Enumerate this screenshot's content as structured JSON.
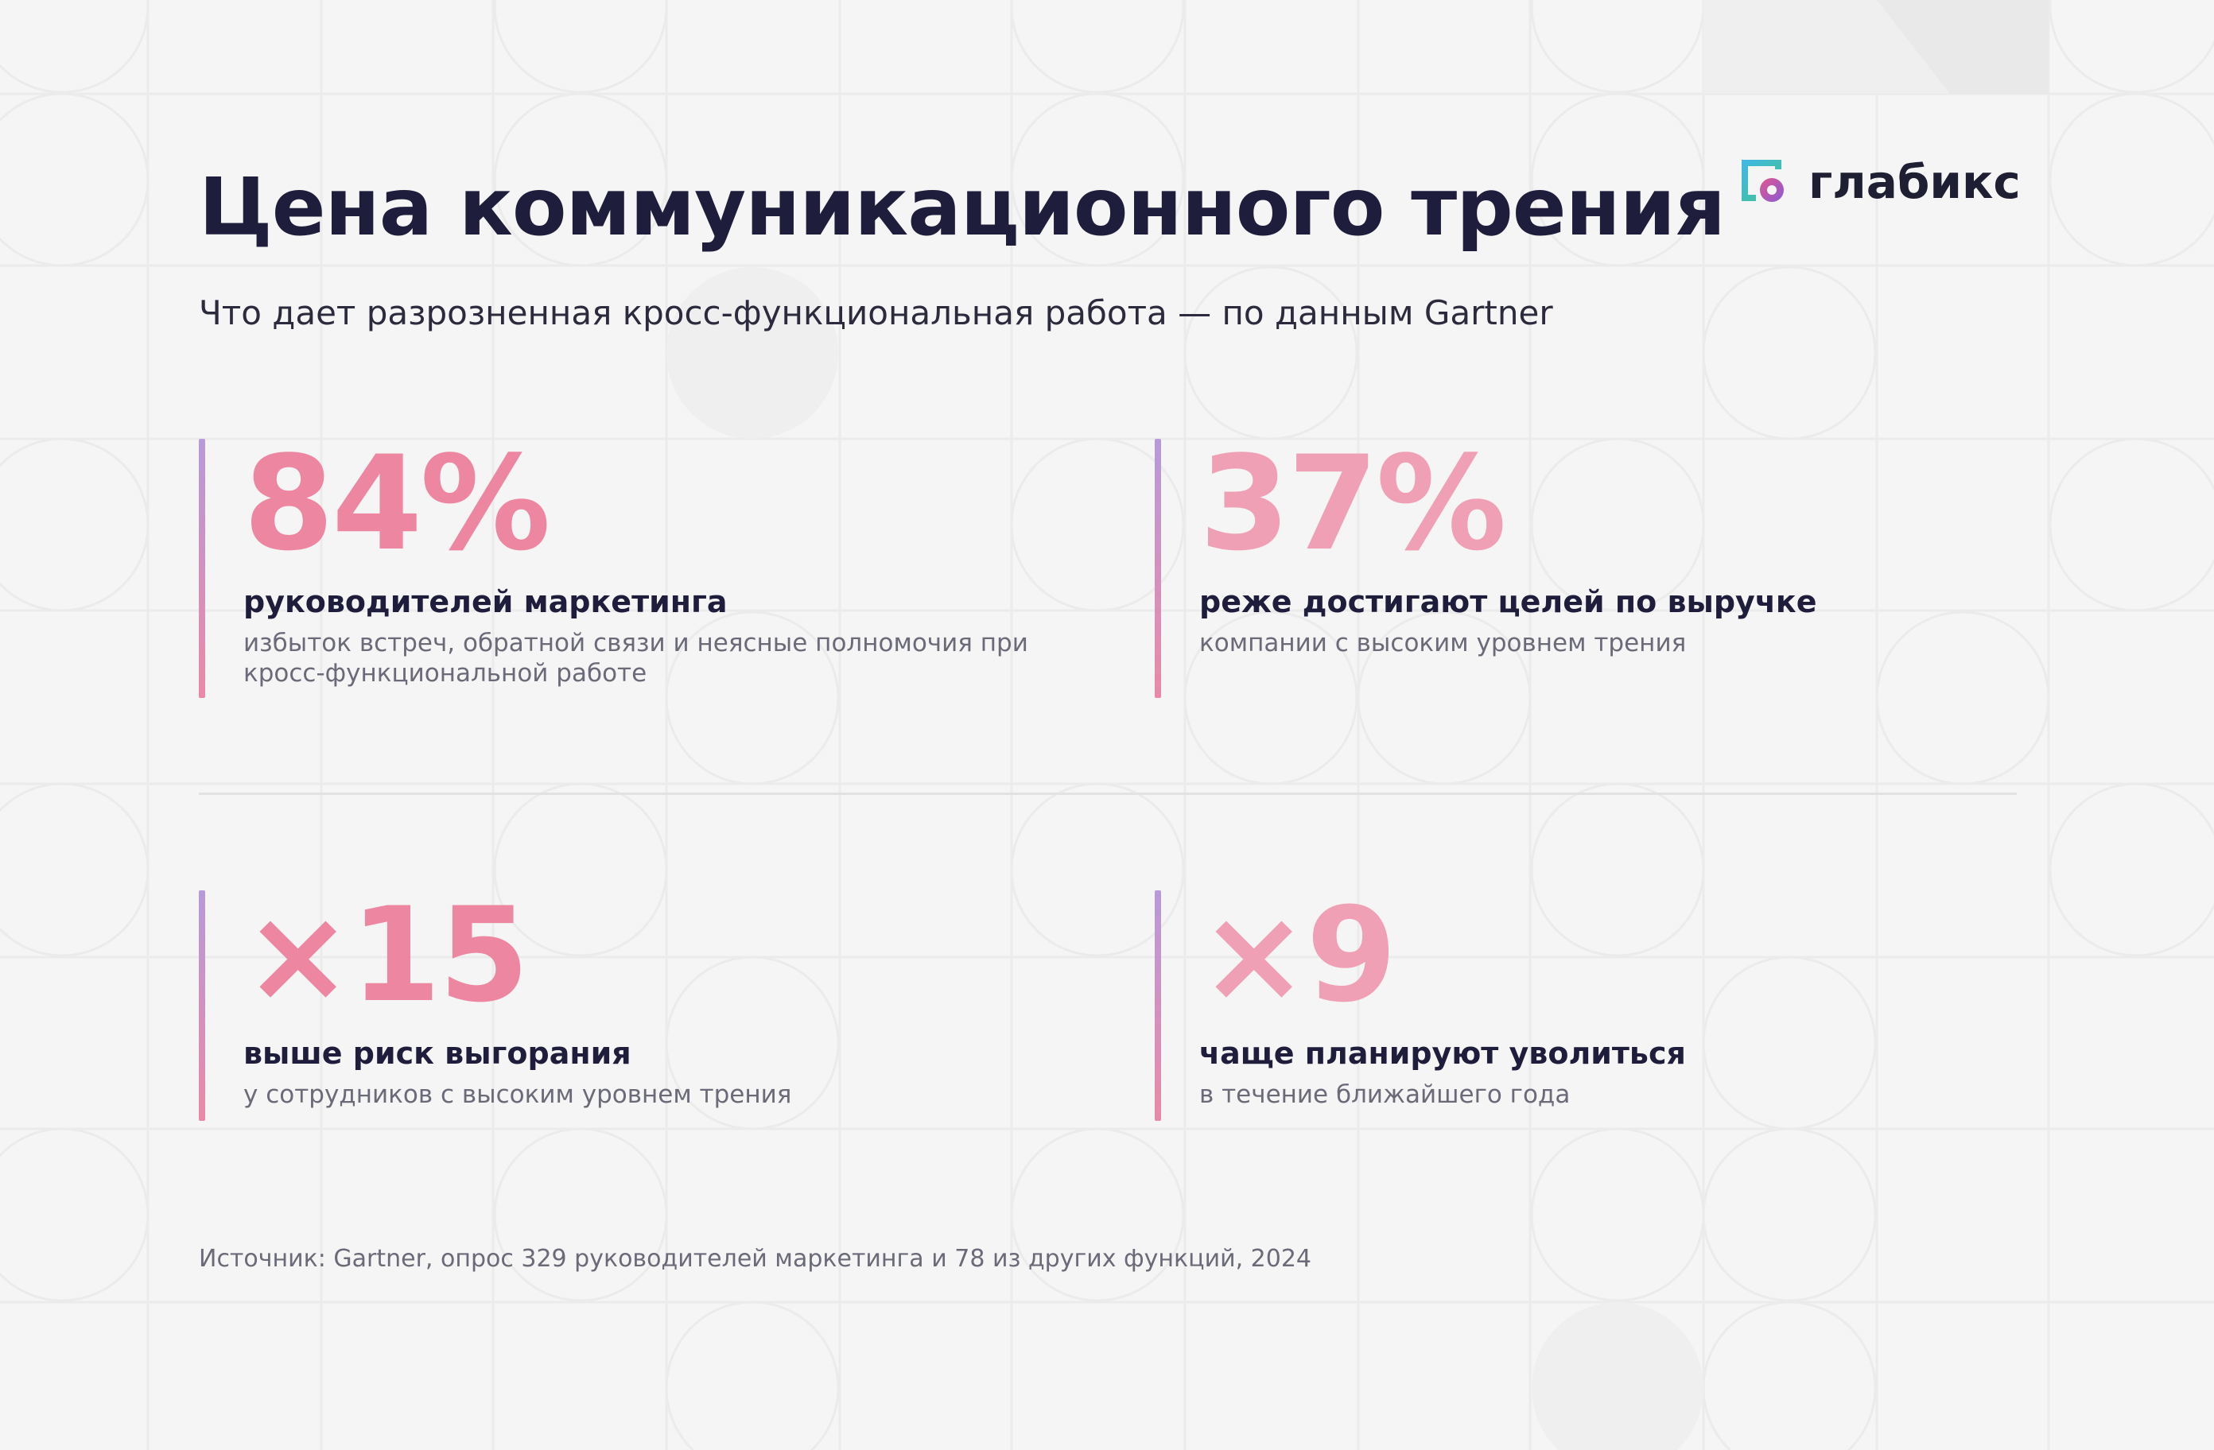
{
  "header": {
    "title": "Цена коммуникационного трения",
    "subtitle": "Что дает разрозненная кросс-функциональная работа — по данным Gartner"
  },
  "logo": {
    "text": "глабикс",
    "icon": "glabix-logo-icon"
  },
  "stats": [
    {
      "value": "84%",
      "label": "руководителей маркетинга",
      "description": "избыток встреч, обратной связи и неясные полномочия при кросс-функциональной работе"
    },
    {
      "value": "37%",
      "label": "реже достигают целей по выручке",
      "description": "компании с высоким уровнем трения"
    },
    {
      "value": "×15",
      "label": "выше риск выгорания",
      "description": "у сотрудников с высоким уровнем трения"
    },
    {
      "value": "×9",
      "label": "чаще планируют уволиться",
      "description": "в течение ближайшего года"
    }
  ],
  "footer": {
    "source": "Источник: Gartner, опрос 329 руководителей маркетинга и 78 из других функций, 2024"
  },
  "colors": {
    "background": "#f5f5f5",
    "title": "#1e1e3c",
    "accent_pink": "#ec86a1",
    "accent_pink_light": "#f0a0b4",
    "accent_purple": "#b79ad8",
    "muted_text": "#6a6a78"
  }
}
